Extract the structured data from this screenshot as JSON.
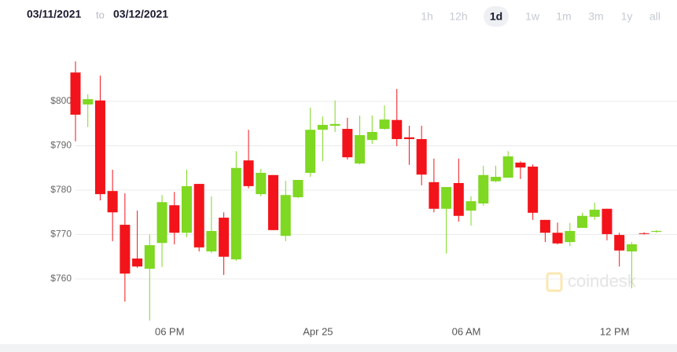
{
  "date_range": {
    "from": "03/11/2021",
    "separator": "to",
    "to": "03/12/2021"
  },
  "range_buttons": [
    "1h",
    "12h",
    "1d",
    "1w",
    "1m",
    "3m",
    "1y",
    "all"
  ],
  "selected_range": "1d",
  "chart_data": {
    "type": "candlestick",
    "watermark": "coindesk",
    "up_color": "#7fd822",
    "down_color": "#f2141a",
    "grid": true,
    "ylim": [
      750,
      812
    ],
    "yticks": [
      {
        "value": 760,
        "label": "$760"
      },
      {
        "value": 770,
        "label": "$770"
      },
      {
        "value": 780,
        "label": "$780"
      },
      {
        "value": 790,
        "label": "$790"
      },
      {
        "value": 800,
        "label": "$800"
      }
    ],
    "categories": [
      null,
      null,
      null,
      null,
      null,
      null,
      null,
      null,
      "06 PM",
      null,
      null,
      null,
      null,
      null,
      null,
      null,
      null,
      null,
      null,
      null,
      "Apr 25",
      null,
      null,
      null,
      null,
      null,
      null,
      null,
      null,
      null,
      null,
      null,
      "06 AM",
      null,
      null,
      null,
      null,
      null,
      null,
      null,
      null,
      null,
      null,
      null,
      "12 PM",
      null,
      null,
      null
    ],
    "open": [
      806.5,
      799.3,
      800.2,
      779.8,
      772.2,
      764.6,
      762.3,
      768.1,
      776.6,
      770.4,
      781.4,
      766.2,
      773.8,
      764.4,
      786.7,
      779.1,
      783.4,
      769.7,
      778.4,
      783.9,
      793.6,
      794.5,
      793.8,
      786.0,
      791.3,
      793.8,
      795.8,
      791.9,
      791.5,
      781.8,
      775.8,
      781.6,
      775.4,
      777.0,
      782.0,
      782.8,
      786.2,
      785.3,
      773.3,
      770.4,
      768.3,
      771.5,
      774.0,
      775.8,
      769.9,
      766.2,
      770.3,
      770.6
    ],
    "high": [
      809.0,
      801.6,
      805.8,
      784.6,
      779.3,
      775.4,
      770.0,
      778.9,
      779.6,
      784.6,
      781.4,
      778.6,
      775.0,
      788.8,
      793.6,
      784.8,
      783.4,
      782.1,
      782.3,
      798.6,
      796.6,
      800.2,
      796.3,
      796.8,
      796.8,
      799.1,
      802.8,
      794.5,
      794.5,
      787.1,
      780.7,
      787.1,
      778.6,
      785.5,
      785.5,
      788.8,
      786.5,
      785.8,
      773.3,
      772.7,
      772.6,
      774.9,
      777.2,
      775.8,
      770.4,
      768.3,
      770.5,
      771.0
    ],
    "low": [
      791.0,
      794.2,
      777.7,
      768.5,
      754.9,
      762.5,
      750.6,
      762.7,
      767.8,
      769.4,
      766.2,
      765.8,
      760.9,
      764.1,
      780.4,
      778.6,
      771.0,
      768.5,
      778.2,
      783.0,
      786.5,
      793.1,
      786.9,
      785.8,
      790.4,
      793.6,
      789.9,
      785.7,
      781.1,
      775.0,
      765.7,
      772.9,
      772.0,
      776.5,
      781.8,
      782.8,
      782.5,
      773.3,
      768.3,
      767.8,
      767.4,
      771.5,
      773.3,
      768.7,
      762.8,
      757.9,
      770.0,
      770.4
    ],
    "close": [
      797.0,
      800.5,
      779.1,
      775.0,
      761.2,
      762.8,
      767.6,
      777.3,
      770.4,
      780.9,
      767.1,
      770.8,
      765.0,
      785.0,
      780.9,
      783.9,
      771.0,
      778.9,
      782.3,
      793.6,
      794.7,
      794.9,
      787.4,
      792.4,
      793.1,
      795.9,
      791.5,
      791.5,
      783.5,
      775.8,
      780.7,
      774.2,
      777.5,
      783.4,
      783.0,
      787.6,
      785.1,
      774.9,
      770.4,
      768.0,
      770.8,
      774.2,
      775.6,
      770.1,
      766.4,
      767.8,
      770.2,
      770.8
    ]
  }
}
